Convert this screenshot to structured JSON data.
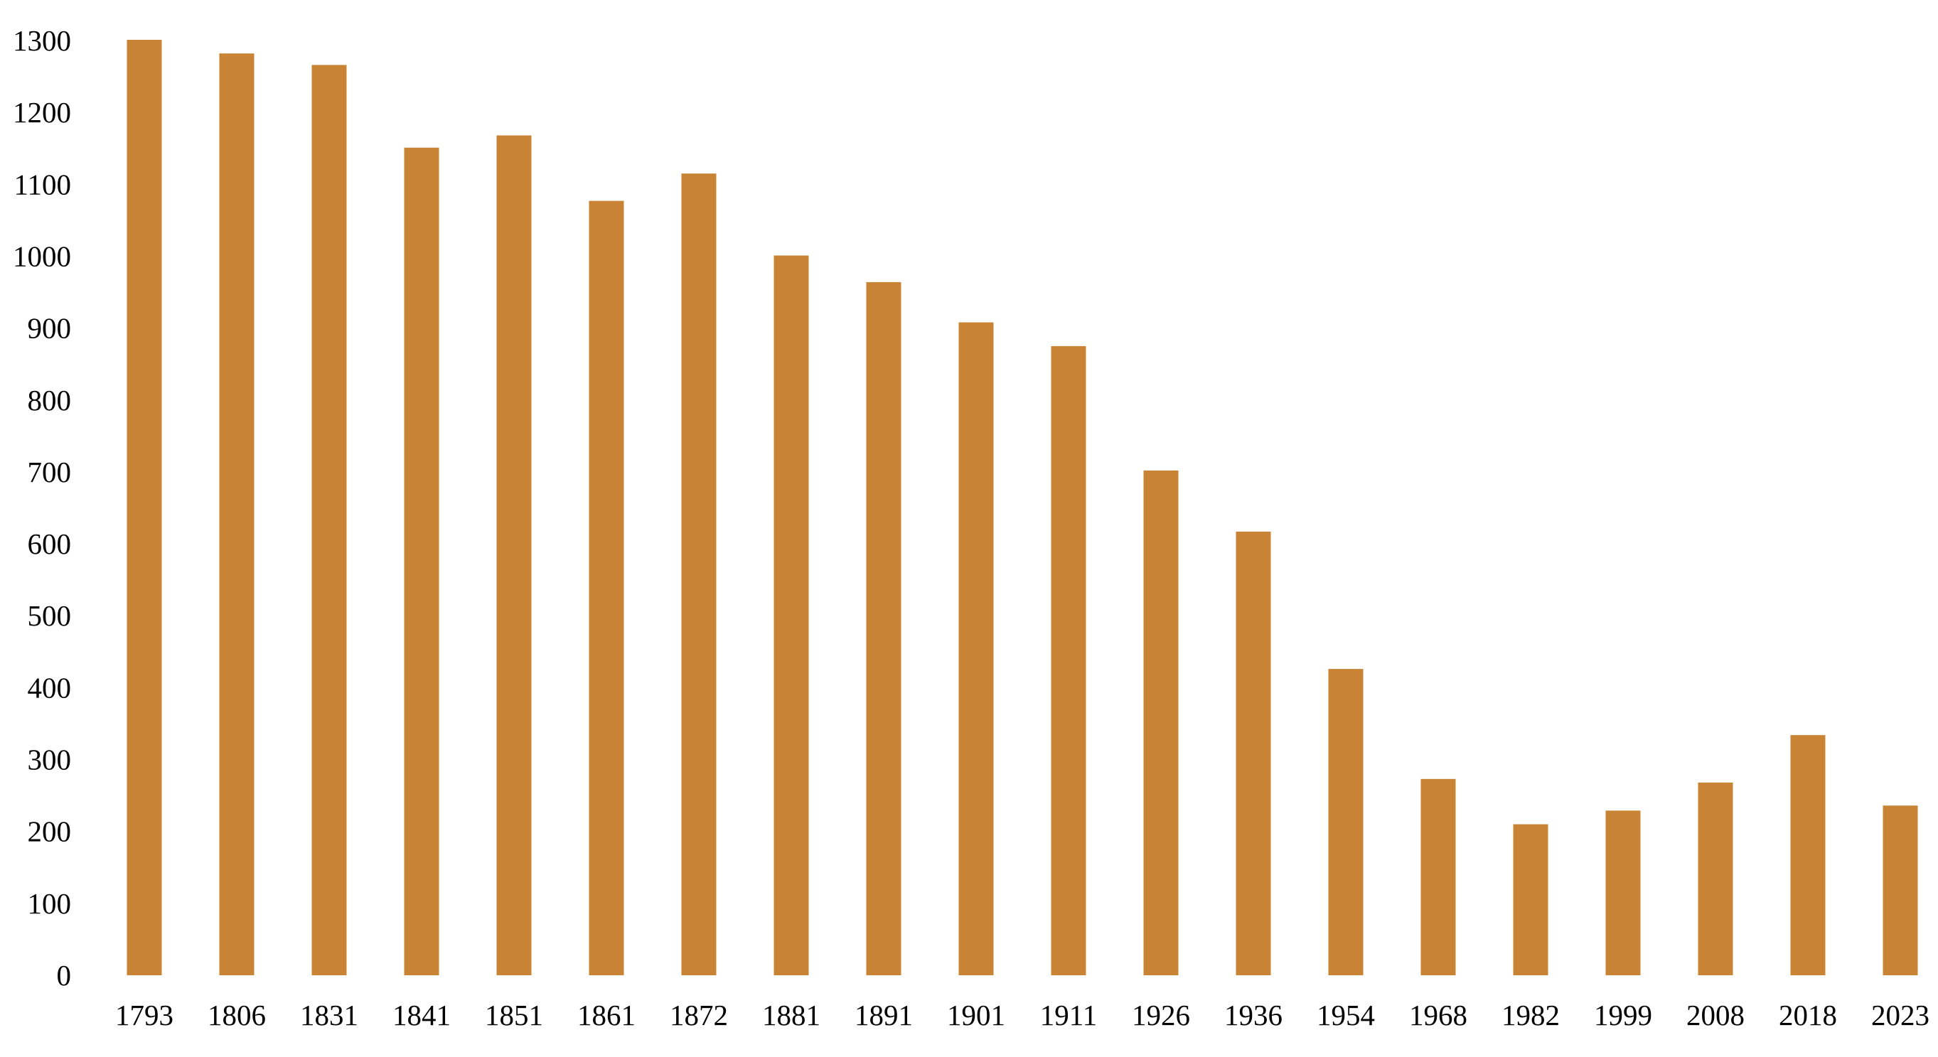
{
  "chart_data": {
    "type": "bar",
    "categories": [
      "1793",
      "1806",
      "1831",
      "1841",
      "1851",
      "1861",
      "1872",
      "1881",
      "1891",
      "1901",
      "1911",
      "1926",
      "1936",
      "1954",
      "1968",
      "1982",
      "1999",
      "2008",
      "2018",
      "2023"
    ],
    "series": [
      {
        "values": [
          1301,
          1282,
          1266,
          1151,
          1168,
          1077,
          1115,
          1001,
          964,
          908,
          875,
          702,
          617,
          426,
          273,
          210,
          229,
          268,
          334,
          236
        ]
      }
    ],
    "title": "",
    "xlabel": "",
    "ylabel": "",
    "ylim": [
      0,
      1300
    ],
    "yticks": [
      "0",
      "100",
      "200",
      "300",
      "400",
      "500",
      "600",
      "700",
      "800",
      "900",
      "1000",
      "1100",
      "1200",
      "1300"
    ],
    "grid": false,
    "legend": "none",
    "bar_color": "#C88434"
  }
}
